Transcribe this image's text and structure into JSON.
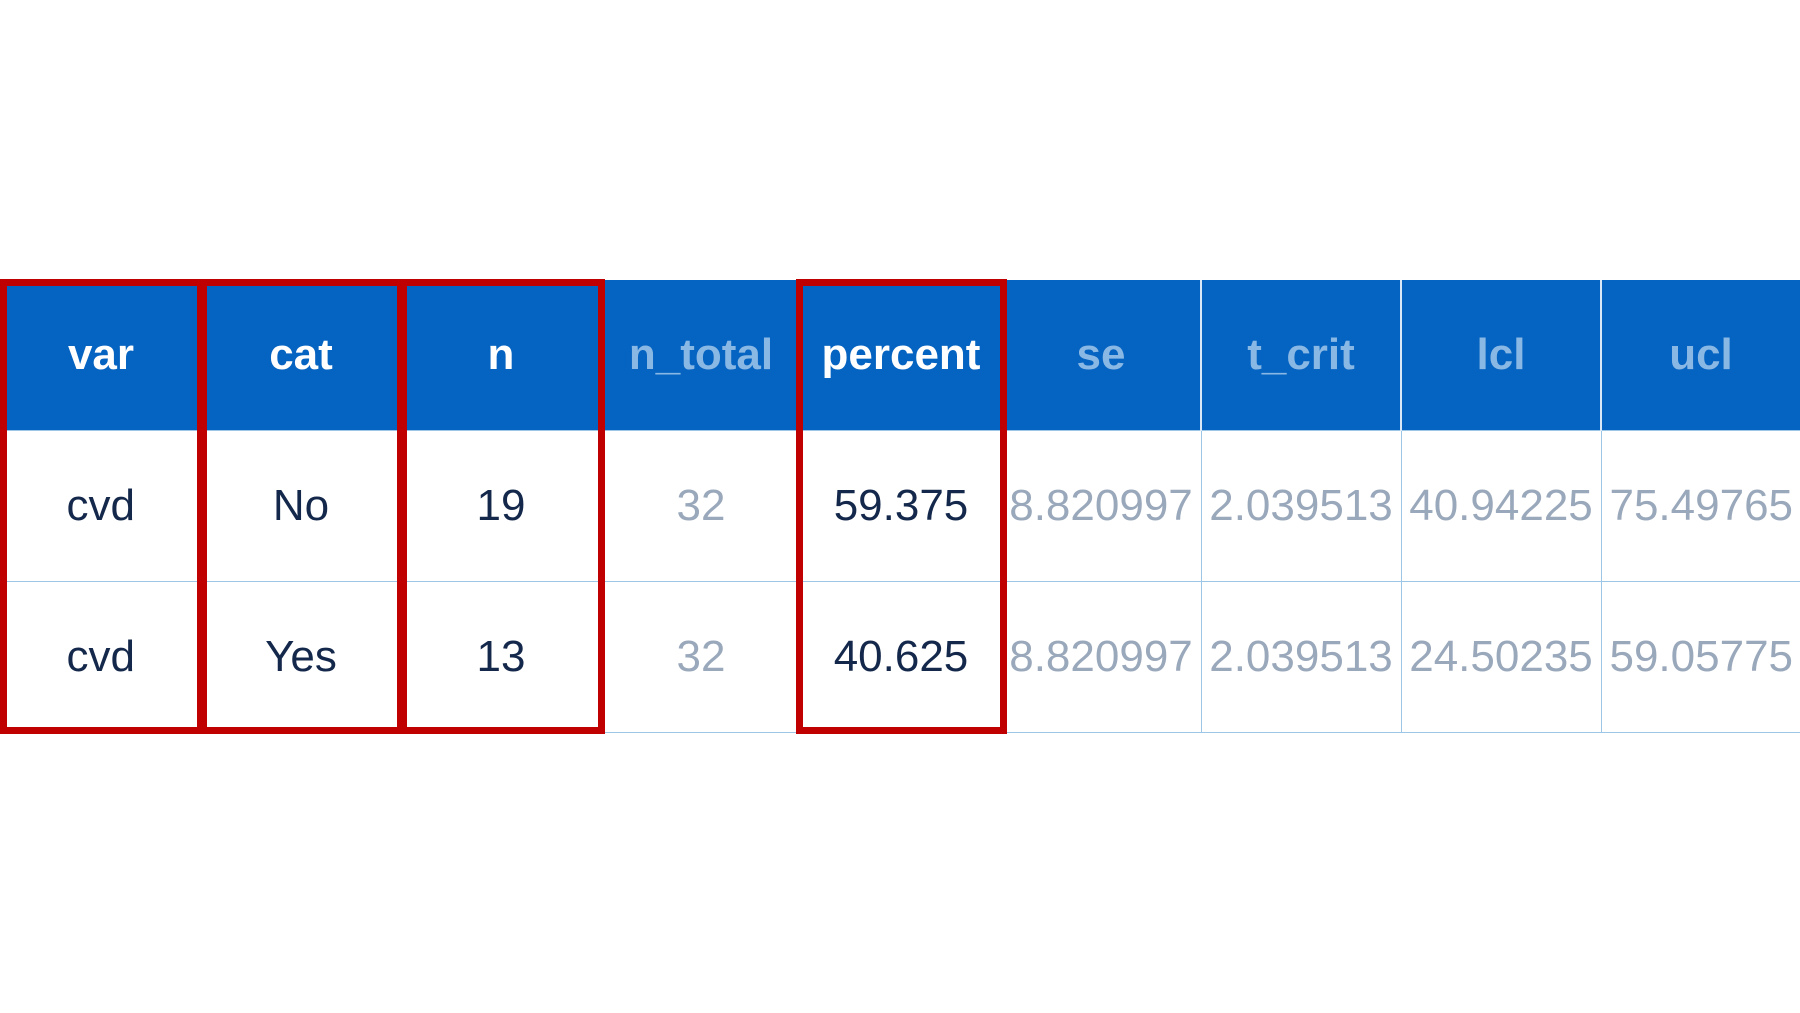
{
  "colors": {
    "header_bg": "#0563c1",
    "header_text_highlighted": "#ffffff",
    "header_text_dimmed": "#8ab8e4",
    "cell_text_highlighted": "#14284b",
    "cell_text_dimmed": "#9aa8bb",
    "callout_border": "#c00000",
    "grid_line": "#9cc5e6"
  },
  "table": {
    "columns": [
      {
        "label": "var",
        "highlighted": true
      },
      {
        "label": "cat",
        "highlighted": true
      },
      {
        "label": "n",
        "highlighted": true
      },
      {
        "label": "n_total",
        "highlighted": false
      },
      {
        "label": "percent",
        "highlighted": true
      },
      {
        "label": "se",
        "highlighted": false
      },
      {
        "label": "t_crit",
        "highlighted": false
      },
      {
        "label": "lcl",
        "highlighted": false
      },
      {
        "label": "ucl",
        "highlighted": false
      }
    ],
    "rows": [
      [
        "cvd",
        "No",
        "19",
        "32",
        "59.375",
        "8.820997",
        "2.039513",
        "40.94225",
        "75.49765"
      ],
      [
        "cvd",
        "Yes",
        "13",
        "32",
        "40.625",
        "8.820997",
        "2.039513",
        "24.50235",
        "59.05775"
      ]
    ]
  }
}
